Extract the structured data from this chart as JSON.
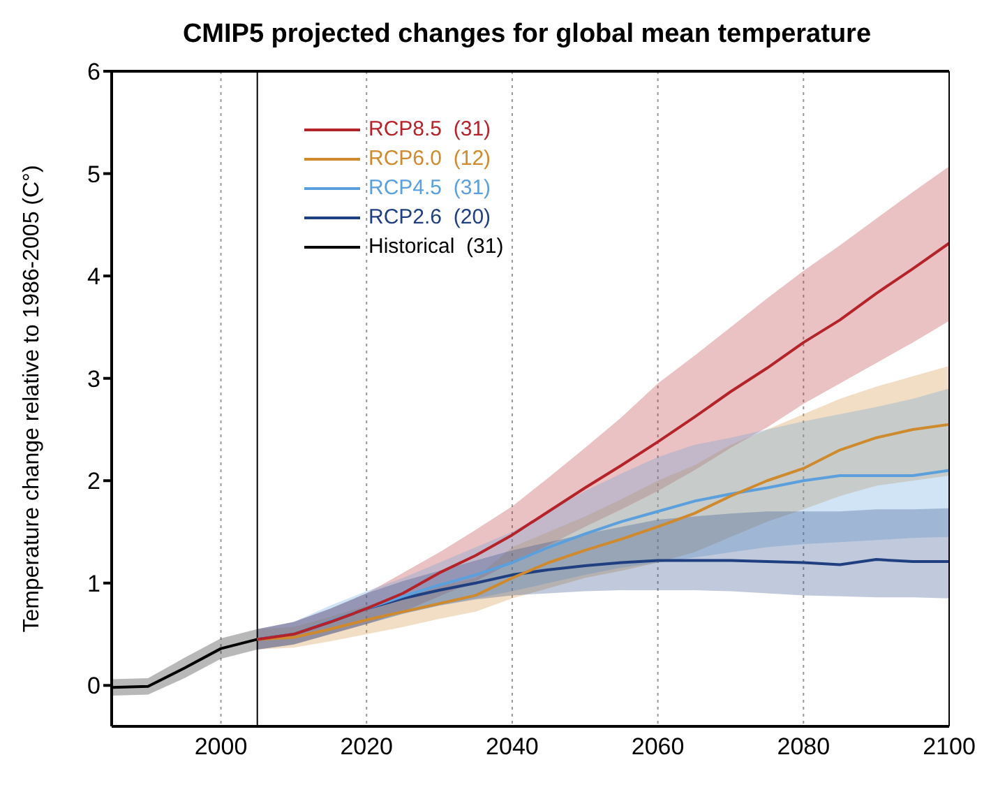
{
  "chart_data": {
    "type": "line",
    "title": "CMIP5  projected changes for global mean temperature",
    "ylabel": "Temperature change relative to 1986-2005 (C°)",
    "xlim": [
      1985,
      2100
    ],
    "xticks": [
      2000,
      2020,
      2040,
      2060,
      2080,
      2100
    ],
    "ylim": [
      -0.4,
      6
    ],
    "yticks": [
      0,
      1,
      2,
      3,
      4,
      5,
      6
    ],
    "grid": "x",
    "legend": "top left",
    "line_style": "solid",
    "ref_lines": [
      {
        "axis": "x",
        "value": 2005,
        "color": "#000000"
      }
    ],
    "series": [
      {
        "name": "RCP8.5  (31)",
        "color": "#b5232a",
        "x": [
          2005,
          2010,
          2015,
          2020,
          2025,
          2030,
          2035,
          2040,
          2045,
          2050,
          2055,
          2060,
          2065,
          2070,
          2075,
          2080,
          2085,
          2090,
          2095,
          2100
        ],
        "values": [
          0.45,
          0.5,
          0.62,
          0.75,
          0.9,
          1.1,
          1.27,
          1.47,
          1.7,
          1.93,
          2.15,
          2.38,
          2.62,
          2.87,
          3.1,
          3.35,
          3.57,
          3.83,
          4.07,
          4.32
        ],
        "lower": [
          0.35,
          0.4,
          0.5,
          0.6,
          0.72,
          0.87,
          1.02,
          1.2,
          1.37,
          1.55,
          1.72,
          1.9,
          2.1,
          2.32,
          2.52,
          2.75,
          2.95,
          3.15,
          3.35,
          3.56
        ],
        "upper": [
          0.55,
          0.62,
          0.75,
          0.9,
          1.1,
          1.3,
          1.52,
          1.75,
          2.03,
          2.32,
          2.62,
          2.95,
          3.22,
          3.5,
          3.78,
          4.05,
          4.3,
          4.56,
          4.82,
          5.07
        ]
      },
      {
        "name": "RCP6.0  (12)",
        "color": "#cf8a2e",
        "x": [
          2005,
          2010,
          2015,
          2020,
          2025,
          2030,
          2035,
          2040,
          2045,
          2050,
          2055,
          2060,
          2065,
          2070,
          2075,
          2080,
          2085,
          2090,
          2095,
          2100
        ],
        "values": [
          0.45,
          0.47,
          0.55,
          0.64,
          0.72,
          0.8,
          0.88,
          1.05,
          1.2,
          1.32,
          1.43,
          1.55,
          1.68,
          1.85,
          2.0,
          2.12,
          2.3,
          2.42,
          2.5,
          2.55
        ],
        "lower": [
          0.35,
          0.37,
          0.43,
          0.5,
          0.57,
          0.65,
          0.72,
          0.85,
          0.95,
          1.05,
          1.12,
          1.2,
          1.3,
          1.45,
          1.6,
          1.72,
          1.85,
          1.95,
          2.0,
          2.05
        ],
        "upper": [
          0.55,
          0.57,
          0.67,
          0.78,
          0.88,
          0.97,
          1.05,
          1.35,
          1.5,
          1.65,
          1.82,
          2.0,
          2.15,
          2.35,
          2.5,
          2.65,
          2.8,
          2.92,
          3.02,
          3.12
        ]
      },
      {
        "name": "RCP4.5  (31)",
        "color": "#5b9fdc",
        "x": [
          2005,
          2010,
          2015,
          2020,
          2025,
          2030,
          2035,
          2040,
          2045,
          2050,
          2055,
          2060,
          2065,
          2070,
          2075,
          2080,
          2085,
          2090,
          2095,
          2100
        ],
        "values": [
          0.45,
          0.5,
          0.63,
          0.75,
          0.87,
          0.98,
          1.08,
          1.2,
          1.35,
          1.48,
          1.6,
          1.7,
          1.8,
          1.87,
          1.93,
          2.0,
          2.05,
          2.05,
          2.05,
          2.1
        ],
        "lower": [
          0.35,
          0.4,
          0.5,
          0.6,
          0.7,
          0.78,
          0.85,
          0.92,
          1.0,
          1.08,
          1.15,
          1.2,
          1.25,
          1.3,
          1.35,
          1.38,
          1.4,
          1.42,
          1.44,
          1.45
        ],
        "upper": [
          0.55,
          0.62,
          0.78,
          0.92,
          1.05,
          1.2,
          1.35,
          1.5,
          1.7,
          1.9,
          2.07,
          2.23,
          2.35,
          2.42,
          2.5,
          2.58,
          2.65,
          2.72,
          2.8,
          2.9
        ]
      },
      {
        "name": "RCP2.6  (20)",
        "color": "#1f3f80",
        "x": [
          2005,
          2010,
          2015,
          2020,
          2025,
          2030,
          2035,
          2040,
          2045,
          2050,
          2055,
          2060,
          2065,
          2070,
          2075,
          2080,
          2085,
          2090,
          2095,
          2100
        ],
        "values": [
          0.45,
          0.5,
          0.62,
          0.75,
          0.85,
          0.93,
          1.0,
          1.08,
          1.13,
          1.17,
          1.2,
          1.22,
          1.22,
          1.22,
          1.21,
          1.2,
          1.18,
          1.23,
          1.21,
          1.21
        ],
        "lower": [
          0.35,
          0.4,
          0.5,
          0.6,
          0.7,
          0.78,
          0.84,
          0.88,
          0.9,
          0.92,
          0.93,
          0.93,
          0.93,
          0.92,
          0.9,
          0.88,
          0.87,
          0.86,
          0.86,
          0.85
        ],
        "upper": [
          0.55,
          0.62,
          0.75,
          0.9,
          1.02,
          1.12,
          1.22,
          1.32,
          1.4,
          1.48,
          1.55,
          1.62,
          1.65,
          1.68,
          1.7,
          1.7,
          1.7,
          1.72,
          1.72,
          1.73
        ]
      },
      {
        "name": "Historical  (31)",
        "color": "#000000",
        "x": [
          1985,
          1990,
          1995,
          2000,
          2005
        ],
        "values": [
          -0.02,
          -0.01,
          0.17,
          0.36,
          0.45
        ],
        "lower": [
          -0.1,
          -0.09,
          0.07,
          0.26,
          0.35
        ],
        "upper": [
          0.06,
          0.07,
          0.27,
          0.46,
          0.55
        ]
      }
    ]
  }
}
